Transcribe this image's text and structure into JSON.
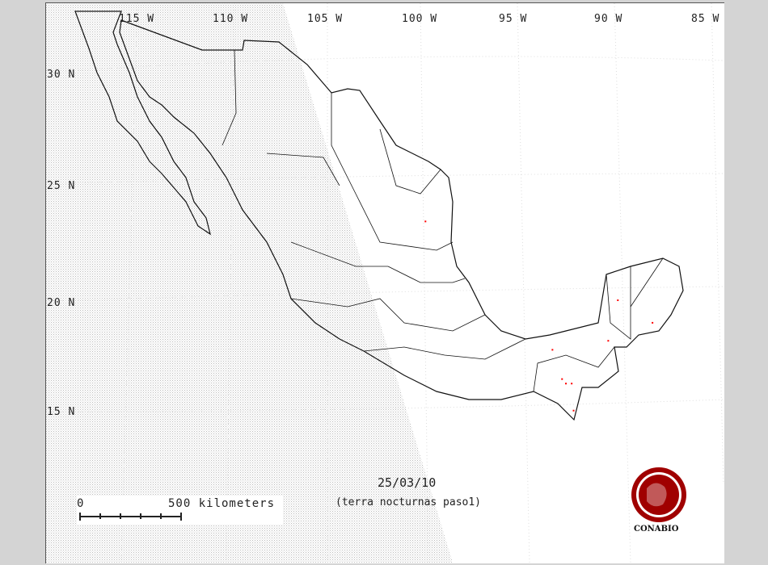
{
  "map": {
    "date": "25/03/10",
    "subtitle": "(terra nocturnas paso1)",
    "longitude_labels": [
      "115 W",
      "110 W",
      "105 W",
      "100 W",
      "95 W",
      "90 W",
      "85 W"
    ],
    "latitude_labels": [
      "30 N",
      "25 N",
      "20 N",
      "15 N"
    ],
    "scale_bar": {
      "start_label": "0",
      "end_label": "500 kilometers"
    },
    "logo": {
      "text": "CONABIO",
      "color": "#a00000"
    },
    "night_shading": true,
    "hotspot_color": "#ff0000",
    "hotspots": [
      {
        "lon": -99.4,
        "lat": 23.5
      },
      {
        "lon": -89.4,
        "lat": 20.0
      },
      {
        "lon": -87.6,
        "lat": 19.0
      },
      {
        "lon": -89.9,
        "lat": 18.2
      },
      {
        "lon": -92.8,
        "lat": 17.8
      },
      {
        "lon": -92.3,
        "lat": 16.5
      },
      {
        "lon": -92.1,
        "lat": 16.3
      },
      {
        "lon": -91.8,
        "lat": 16.3
      },
      {
        "lon": -91.7,
        "lat": 15.1
      }
    ]
  }
}
